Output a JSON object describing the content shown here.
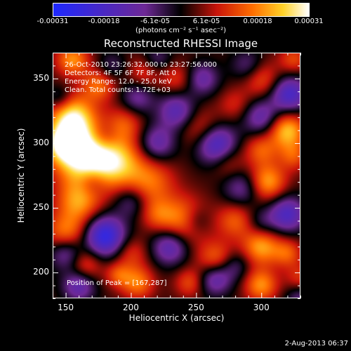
{
  "chart_data": {
    "type": "heatmap",
    "title": "Reconstructed RHESSI Image",
    "xlabel": "Heliocentric X (arcsec)",
    "ylabel": "Heliocentric Y (arcsec)",
    "xlim": [
      140,
      330
    ],
    "ylim": [
      180,
      370
    ],
    "x_ticks": [
      "150",
      "200",
      "250",
      "300"
    ],
    "y_ticks": [
      "200",
      "250",
      "300",
      "350"
    ],
    "colorbar": {
      "range": [
        -0.00031,
        0.00031
      ],
      "tick_labels": [
        "-0.00031",
        "-0.00018",
        "-6.1e-05",
        "6.1e-05",
        "0.00018",
        "0.00031"
      ],
      "unit_label": "(photons cm⁻² s⁻¹ asec⁻²)"
    },
    "annotations": [
      "26-Oct-2010 23:26:32.000 to 23:27:56.000",
      "Detectors: 4F 5F 6F 7F 8F, Att 0",
      "Energy Range: 12.0 - 25.0 keV",
      "Clean.  Total counts: 1.72E+03"
    ],
    "peak_label": "Position of Peak = [167,287]",
    "peak": [
      167,
      287
    ],
    "sources": [
      {
        "x": 165,
        "y": 290,
        "v": 1.0,
        "s": 16
      },
      {
        "x": 155,
        "y": 320,
        "v": 0.8,
        "s": 12
      },
      {
        "x": 148,
        "y": 300,
        "v": 0.7,
        "s": 10
      },
      {
        "x": 190,
        "y": 285,
        "v": 0.6,
        "s": 14
      },
      {
        "x": 215,
        "y": 270,
        "v": 0.45,
        "s": 13
      },
      {
        "x": 160,
        "y": 255,
        "v": 0.55,
        "s": 12
      },
      {
        "x": 195,
        "y": 315,
        "v": 0.35,
        "s": 10
      },
      {
        "x": 175,
        "y": 345,
        "v": 0.45,
        "s": 9
      },
      {
        "x": 210,
        "y": 355,
        "v": 0.3,
        "s": 9
      },
      {
        "x": 235,
        "y": 350,
        "v": 0.3,
        "s": 9
      },
      {
        "x": 255,
        "y": 310,
        "v": 0.4,
        "s": 11
      },
      {
        "x": 320,
        "y": 310,
        "v": 0.7,
        "s": 10
      },
      {
        "x": 300,
        "y": 295,
        "v": 0.4,
        "s": 9
      },
      {
        "x": 305,
        "y": 270,
        "v": 0.6,
        "s": 10
      },
      {
        "x": 325,
        "y": 290,
        "v": 0.35,
        "s": 8
      },
      {
        "x": 275,
        "y": 285,
        "v": 0.25,
        "s": 9
      },
      {
        "x": 240,
        "y": 240,
        "v": 0.55,
        "s": 13
      },
      {
        "x": 280,
        "y": 240,
        "v": 0.4,
        "s": 10
      },
      {
        "x": 220,
        "y": 245,
        "v": 0.3,
        "s": 9
      },
      {
        "x": 150,
        "y": 230,
        "v": 0.5,
        "s": 11
      },
      {
        "x": 165,
        "y": 205,
        "v": 0.4,
        "s": 9
      },
      {
        "x": 200,
        "y": 215,
        "v": 0.3,
        "s": 9
      },
      {
        "x": 205,
        "y": 192,
        "v": 0.5,
        "s": 9
      },
      {
        "x": 190,
        "y": 198,
        "v": 0.35,
        "s": 7
      },
      {
        "x": 265,
        "y": 210,
        "v": 0.45,
        "s": 10
      },
      {
        "x": 300,
        "y": 220,
        "v": 0.6,
        "s": 10
      },
      {
        "x": 320,
        "y": 215,
        "v": 0.4,
        "s": 8
      },
      {
        "x": 300,
        "y": 190,
        "v": 0.55,
        "s": 9
      },
      {
        "x": 330,
        "y": 195,
        "v": 0.3,
        "s": 8
      },
      {
        "x": 245,
        "y": 192,
        "v": 0.35,
        "s": 8
      },
      {
        "x": 280,
        "y": 330,
        "v": 0.25,
        "s": 9
      },
      {
        "x": 300,
        "y": 350,
        "v": 0.4,
        "s": 10
      },
      {
        "x": 325,
        "y": 365,
        "v": 0.35,
        "s": 8
      },
      {
        "x": 155,
        "y": 365,
        "v": 0.55,
        "s": 9
      },
      {
        "x": 160,
        "y": 190,
        "v": -0.55,
        "s": 9
      },
      {
        "x": 150,
        "y": 215,
        "v": -0.5,
        "s": 9
      },
      {
        "x": 180,
        "y": 228,
        "v": -0.9,
        "s": 11
      },
      {
        "x": 230,
        "y": 220,
        "v": -0.6,
        "s": 10
      },
      {
        "x": 265,
        "y": 195,
        "v": -0.55,
        "s": 9
      },
      {
        "x": 250,
        "y": 240,
        "v": -0.3,
        "s": 8
      },
      {
        "x": 320,
        "y": 245,
        "v": -0.65,
        "s": 10
      },
      {
        "x": 285,
        "y": 265,
        "v": -0.4,
        "s": 10
      },
      {
        "x": 265,
        "y": 300,
        "v": -0.8,
        "s": 11
      },
      {
        "x": 220,
        "y": 300,
        "v": -0.5,
        "s": 10
      },
      {
        "x": 235,
        "y": 325,
        "v": -0.55,
        "s": 10
      },
      {
        "x": 205,
        "y": 335,
        "v": -0.4,
        "s": 9
      },
      {
        "x": 180,
        "y": 305,
        "v": -0.25,
        "s": 8
      },
      {
        "x": 170,
        "y": 270,
        "v": -0.3,
        "s": 8
      },
      {
        "x": 200,
        "y": 255,
        "v": -0.35,
        "s": 9
      },
      {
        "x": 300,
        "y": 320,
        "v": -0.5,
        "s": 10
      },
      {
        "x": 322,
        "y": 338,
        "v": -0.7,
        "s": 10
      },
      {
        "x": 290,
        "y": 360,
        "v": -0.35,
        "s": 9
      },
      {
        "x": 255,
        "y": 350,
        "v": -0.45,
        "s": 9
      },
      {
        "x": 220,
        "y": 365,
        "v": -0.3,
        "s": 8
      },
      {
        "x": 185,
        "y": 360,
        "v": -0.25,
        "s": 8
      },
      {
        "x": 145,
        "y": 335,
        "v": -0.3,
        "s": 7
      },
      {
        "x": 300,
        "y": 238,
        "v": -0.25,
        "s": 8
      },
      {
        "x": 280,
        "y": 205,
        "v": -0.3,
        "s": 8
      },
      {
        "x": 330,
        "y": 180,
        "v": -0.35,
        "s": 8
      }
    ]
  },
  "footer": {
    "timestamp": "2-Aug-2013 06:37"
  }
}
